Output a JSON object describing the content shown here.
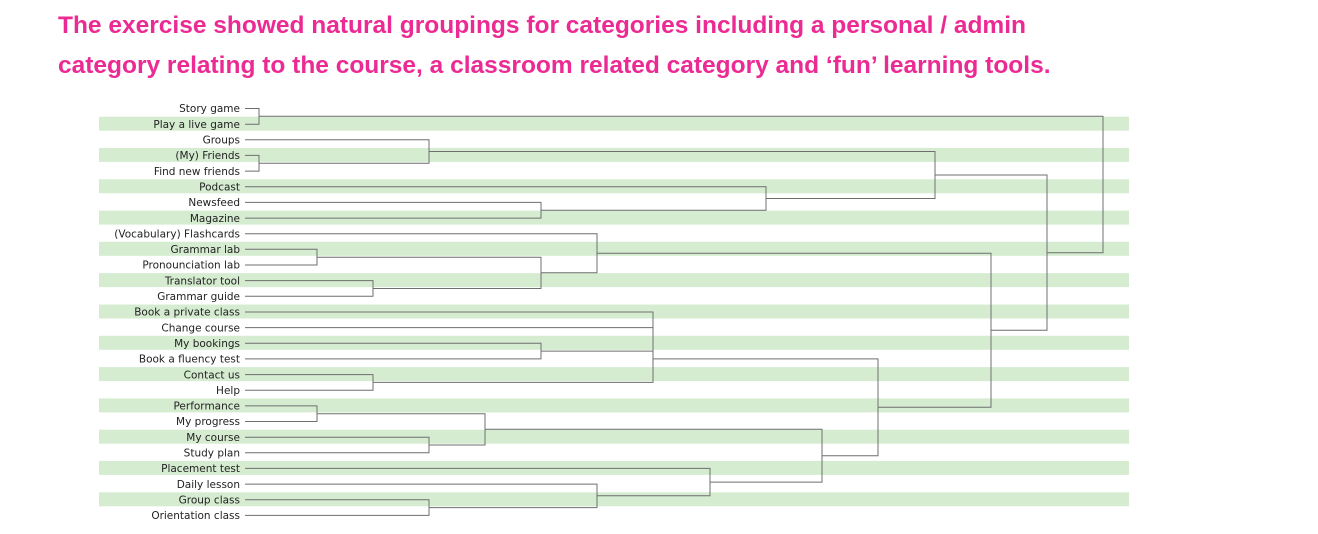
{
  "headline": {
    "line1": "The exercise showed natural groupings for categories including a personal / admin",
    "line2": "category relating to the course, a classroom related category and ‘fun’ learning tools."
  },
  "colors": {
    "headline": "#ec2a93",
    "band": "#d5ecd1",
    "line": "#6f6f6f"
  },
  "dendrogram": {
    "items": [
      "Story game",
      "Play a live game",
      "Groups",
      "(My) Friends",
      "Find new friends",
      "Podcast",
      "Newsfeed",
      "Magazine",
      "(Vocabulary) Flashcards",
      "Grammar lab",
      "Pronounciation lab",
      "Translator tool",
      "Grammar guide",
      "Book a private class",
      "Change course",
      "My bookings",
      "Book a fluency test",
      "Contact us",
      "Help",
      "Performance",
      "My progress",
      "My course",
      "Study plan",
      "Placement test",
      "Daily lesson",
      "Group class",
      "Orientation class"
    ]
  }
}
